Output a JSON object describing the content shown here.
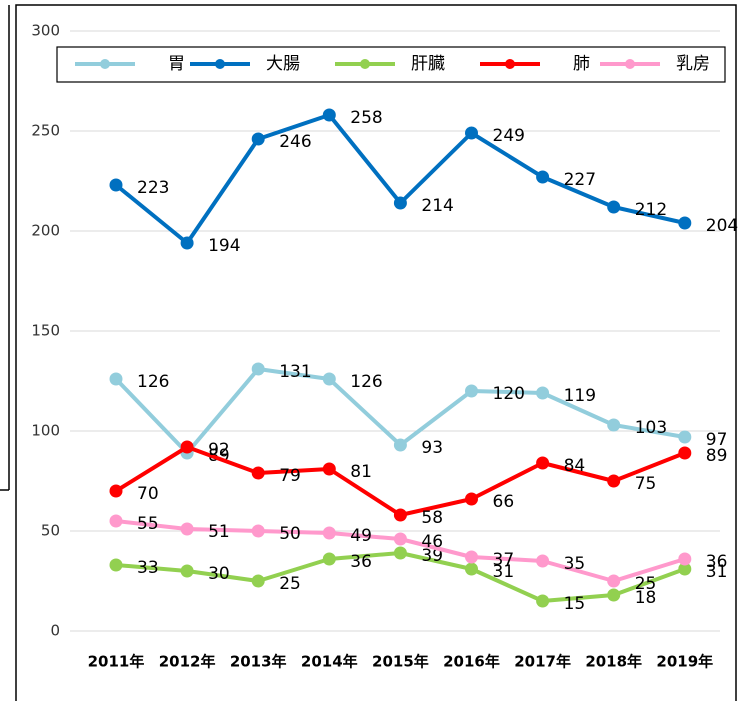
{
  "chart_data": {
    "type": "line",
    "categories": [
      "2011年",
      "2012年",
      "2013年",
      "2014年",
      "2015年",
      "2016年",
      "2017年",
      "2018年",
      "2019年"
    ],
    "series": [
      {
        "name": "胃",
        "color": "#92cddc",
        "values": [
          126,
          89,
          131,
          126,
          93,
          120,
          119,
          103,
          97
        ]
      },
      {
        "name": "大腸",
        "color": "#0070c0",
        "values": [
          223,
          194,
          246,
          258,
          214,
          249,
          227,
          212,
          204
        ]
      },
      {
        "name": "肝臓",
        "color": "#92d050",
        "values": [
          33,
          30,
          25,
          36,
          39,
          31,
          15,
          18,
          31
        ]
      },
      {
        "name": "肺",
        "color": "#ff0000",
        "values": [
          70,
          92,
          79,
          81,
          58,
          66,
          84,
          75,
          89
        ]
      },
      {
        "name": "乳房",
        "color": "#ff99cc",
        "values": [
          55,
          51,
          50,
          49,
          46,
          37,
          35,
          25,
          36
        ]
      }
    ],
    "ylim": [
      0,
      300
    ],
    "yticks": [
      0,
      50,
      100,
      150,
      200,
      250,
      300
    ],
    "grid": true,
    "legend": "top"
  }
}
